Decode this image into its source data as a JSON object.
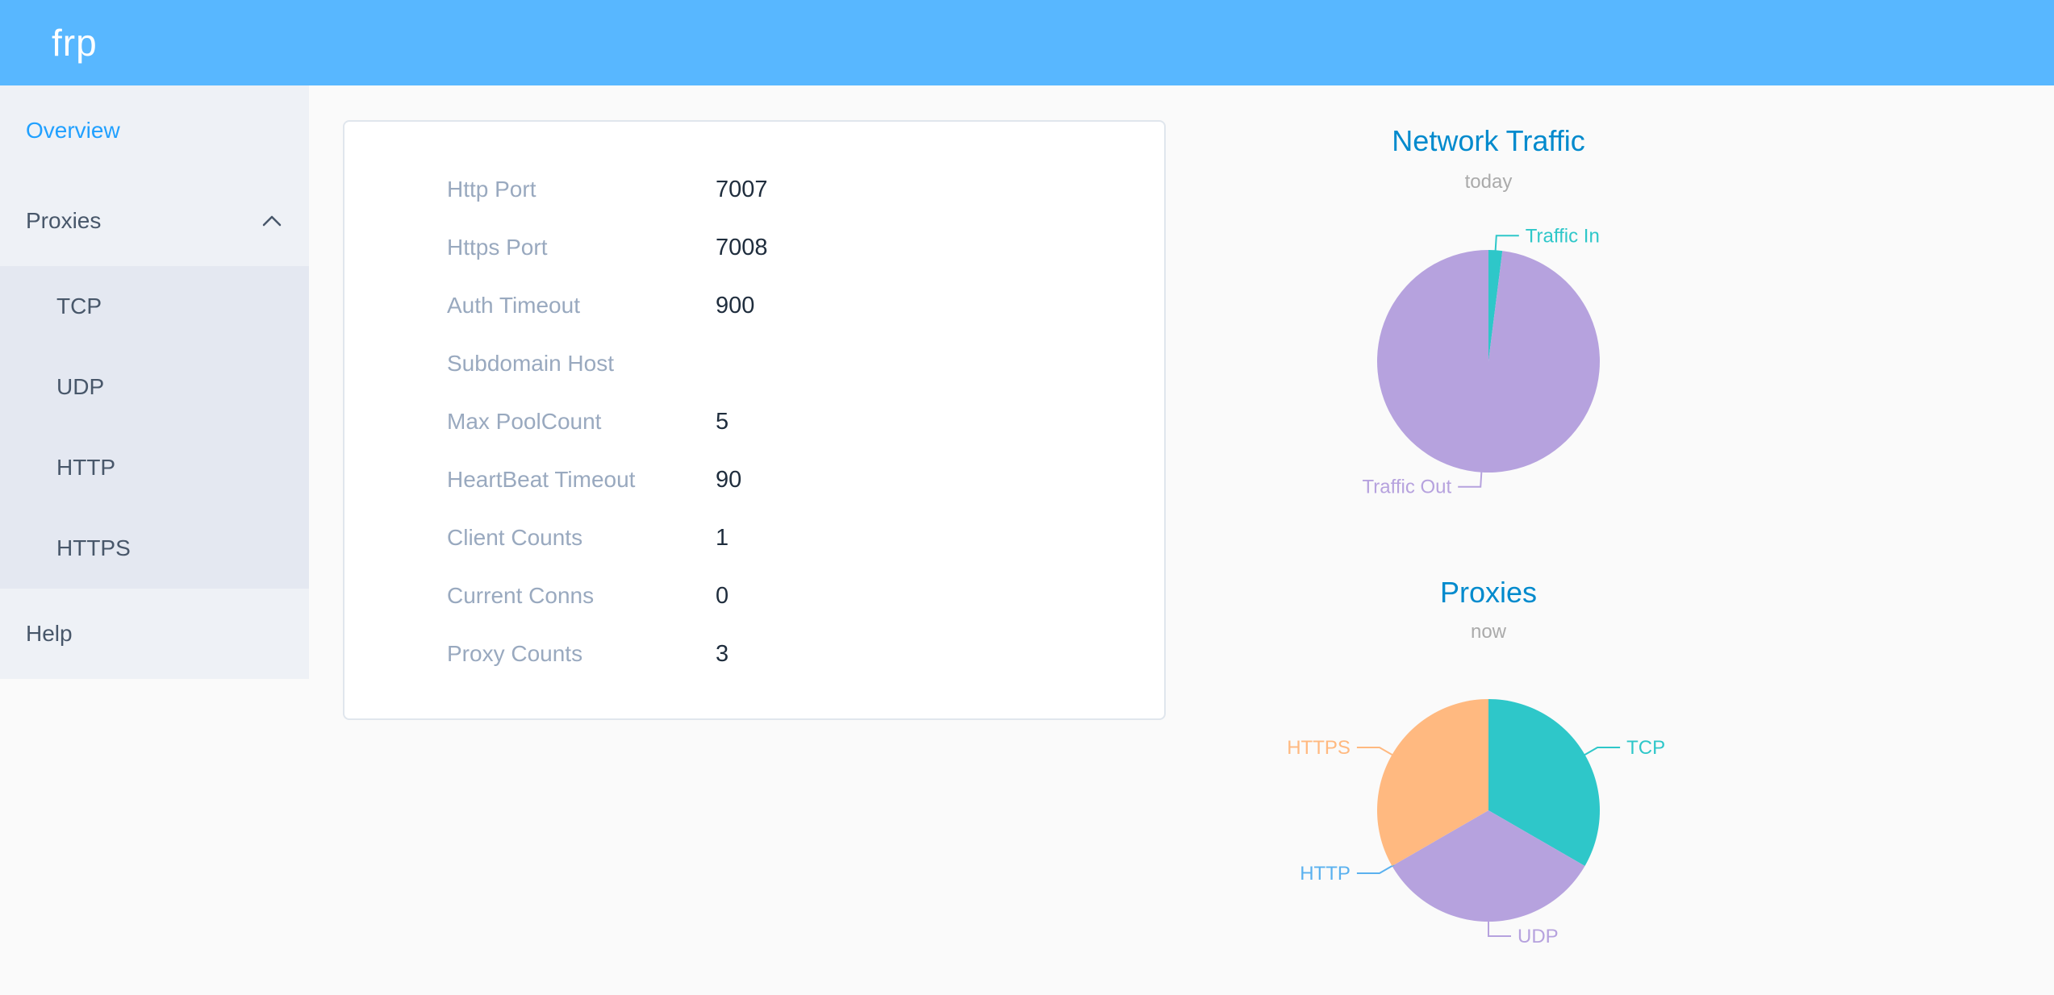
{
  "header": {
    "logo": "frp"
  },
  "colors": {
    "header_background": "#58B7FF",
    "active_menu_item": "#20a0ff",
    "menu_text": "#48576a",
    "sidebar_background": "#eef1f6",
    "submenu_background": "#e4e8f1",
    "chart_title_blue": "#008acd",
    "info_label_gray": "#99a9bf",
    "info_value_dark": "#1f2d3d"
  },
  "sidebar": {
    "items": [
      {
        "label": "Overview",
        "active": true
      },
      {
        "label": "Proxies",
        "expanded": true
      },
      {
        "label": "Help",
        "active": false
      }
    ],
    "proxies_submenu": [
      "TCP",
      "UDP",
      "HTTP",
      "HTTPS"
    ]
  },
  "server_info": {
    "rows": [
      {
        "label": "Http Port",
        "value": "7007"
      },
      {
        "label": "Https Port",
        "value": "7008"
      },
      {
        "label": "Auth Timeout",
        "value": "900"
      },
      {
        "label": "Subdomain Host",
        "value": ""
      },
      {
        "label": "Max PoolCount",
        "value": "5"
      },
      {
        "label": "HeartBeat Timeout",
        "value": "90"
      },
      {
        "label": "Client Counts",
        "value": "1"
      },
      {
        "label": "Current Conns",
        "value": "0"
      },
      {
        "label": "Proxy Counts",
        "value": "3"
      }
    ]
  },
  "chart_data": [
    {
      "type": "pie",
      "title": "Network Traffic",
      "subtitle": "today",
      "legend_position": "outside-labels",
      "series": [
        {
          "name": "Traffic In",
          "value": 2,
          "color": "#2ec7c9"
        },
        {
          "name": "Traffic Out",
          "value": 98,
          "color": "#b6a2de"
        }
      ]
    },
    {
      "type": "pie",
      "title": "Proxies",
      "subtitle": "now",
      "legend_position": "outside-labels",
      "series": [
        {
          "name": "TCP",
          "value": 1,
          "color": "#2ec7c9"
        },
        {
          "name": "UDP",
          "value": 1,
          "color": "#b6a2de"
        },
        {
          "name": "HTTP",
          "value": 0,
          "color": "#5ab1ef"
        },
        {
          "name": "HTTPS",
          "value": 1,
          "color": "#ffb980"
        }
      ]
    }
  ]
}
